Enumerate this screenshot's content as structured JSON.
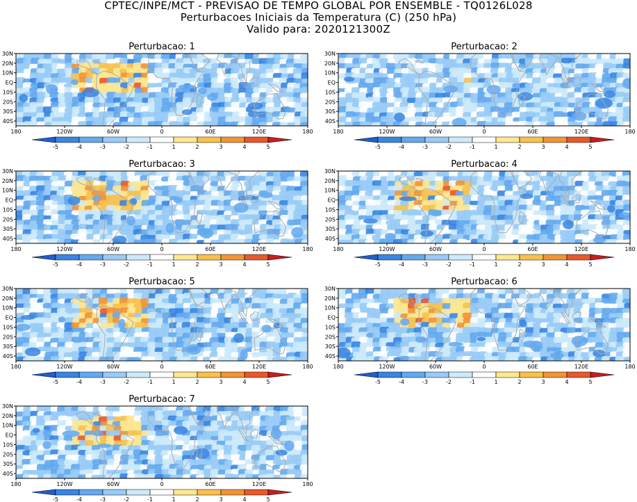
{
  "header": {
    "line1": "CPTEC/INPE/MCT - PREVISAO DE TEMPO GLOBAL POR ENSEMBLE - TQ0126L028",
    "line2": "Perturbacoes Iniciais da Temperatura (C) (250 hPa)",
    "line3": "Valido para: 2020121300Z"
  },
  "panels": [
    {
      "title": "Perturbacao: 1"
    },
    {
      "title": "Perturbacao: 2"
    },
    {
      "title": "Perturbacao: 3"
    },
    {
      "title": "Perturbacao: 4"
    },
    {
      "title": "Perturbacao: 5"
    },
    {
      "title": "Perturbacao: 6"
    },
    {
      "title": "Perturbacao: 7"
    }
  ],
  "axes": {
    "lat_labels": [
      "30N",
      "20N",
      "10N",
      "EQ",
      "10S",
      "20S",
      "30S",
      "40S"
    ],
    "lon_labels": [
      "180",
      "120W",
      "60W",
      "0",
      "60E",
      "120E",
      "180"
    ]
  },
  "colorbar": {
    "labels": [
      "-5",
      "-4",
      "-3",
      "-2",
      "-1",
      "1",
      "2",
      "3",
      "4",
      "5"
    ],
    "colors": [
      "#1f5fd0",
      "#3a85e2",
      "#64a8ee",
      "#98cbf6",
      "#cdeafb",
      "#ffffff",
      "#fde78f",
      "#f8c14b",
      "#f29434",
      "#e9582a",
      "#c81e1e"
    ]
  },
  "colors": {
    "land_outline": "#a9a9a9",
    "frame": "#000000"
  }
}
